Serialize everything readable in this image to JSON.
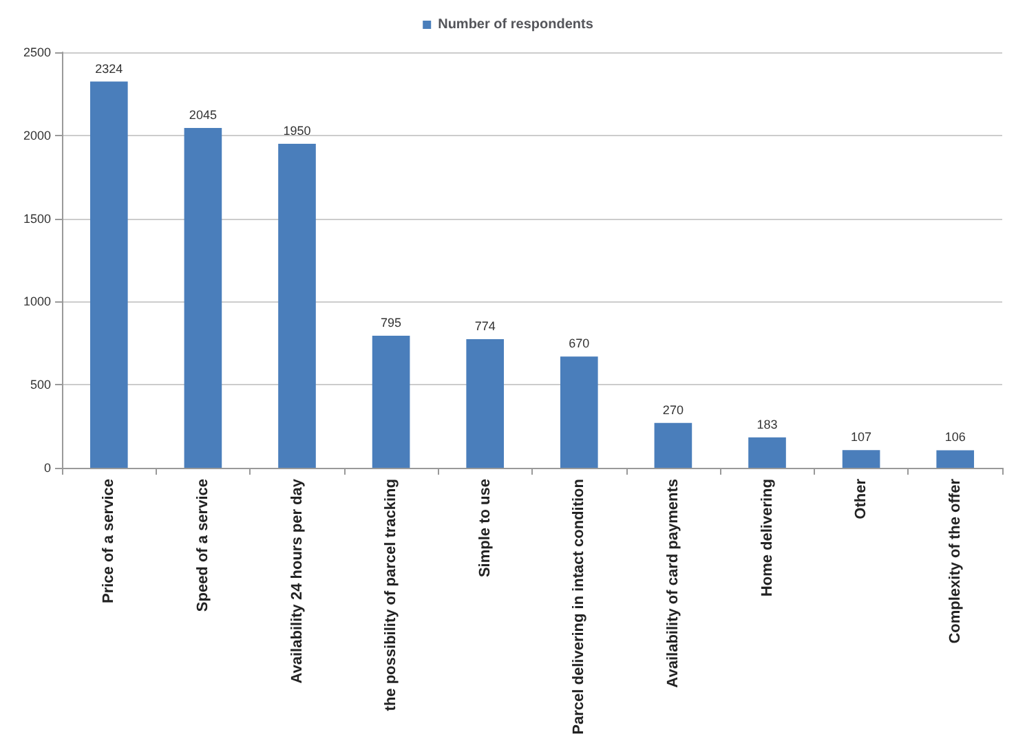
{
  "chart_data": {
    "type": "bar",
    "categories": [
      "Price of a service",
      "Speed of a service",
      "Availability 24 hours per day",
      "the possibility of parcel tracking",
      "Simple to use",
      "Parcel delivering in intact condition",
      "Availability of card payments",
      "Home delivering",
      "Other",
      "Complexity of the offer"
    ],
    "series": [
      {
        "name": "Number of respondents",
        "color": "#4a7ebb",
        "values": [
          2324,
          2045,
          1950,
          795,
          774,
          670,
          270,
          183,
          107,
          106
        ]
      }
    ],
    "ylim": [
      0,
      2500
    ],
    "yticks": [
      0,
      500,
      1000,
      1500,
      2000,
      2500
    ],
    "grid": "y",
    "legend": "top",
    "data_labels": true
  }
}
